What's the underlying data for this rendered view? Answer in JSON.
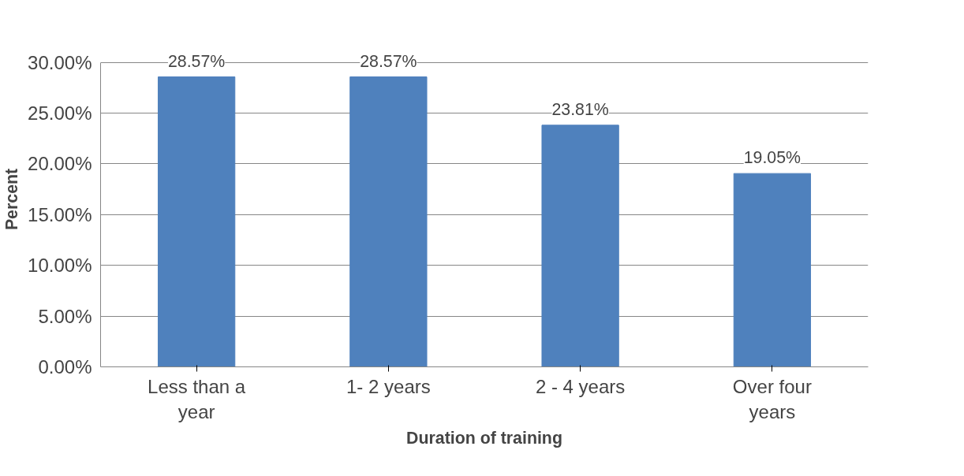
{
  "chart_data": {
    "type": "bar",
    "xlabel": "Duration of training",
    "ylabel": "Percent",
    "categories": [
      "Less than a year",
      "1- 2 years",
      "2 - 4 years",
      "Over four years"
    ],
    "values": [
      28.57,
      28.57,
      23.81,
      19.05
    ],
    "value_labels": [
      "28.57%",
      "28.57%",
      "23.81%",
      "19.05%"
    ],
    "color": "#4f81bd",
    "ylim": [
      0,
      30
    ],
    "yticks": [
      {
        "value": 0,
        "label": "0.00%"
      },
      {
        "value": 5,
        "label": "5.00%"
      },
      {
        "value": 10,
        "label": "10.00%"
      },
      {
        "value": 15,
        "label": "15.00%"
      },
      {
        "value": 20,
        "label": "20.00%"
      },
      {
        "value": 25,
        "label": "25.00%"
      },
      {
        "value": 30,
        "label": "30.00%"
      }
    ],
    "grid": "y"
  }
}
